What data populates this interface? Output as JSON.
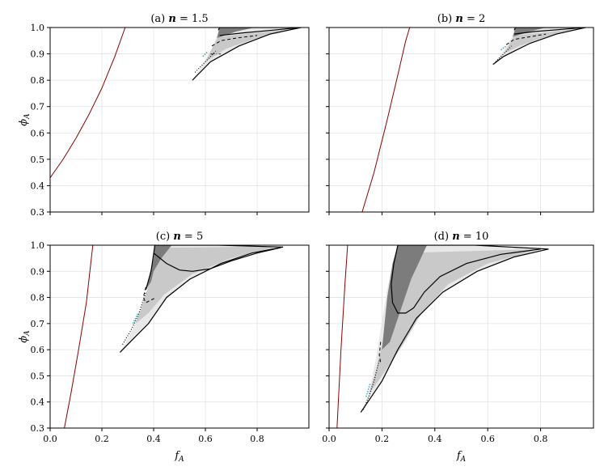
{
  "figure": {
    "shared_xlabel": "f",
    "shared_xlabel_sub": "A",
    "shared_ylabel": "ϕ",
    "shared_ylabel_sub": "A"
  },
  "chart_data": [
    {
      "type": "area",
      "title": "(a) n = 1.5",
      "title_prefix": "(a) ",
      "title_var": "n",
      "title_suffix": " = 1.5",
      "xlim": [
        0.0,
        1.0
      ],
      "ylim": [
        0.3,
        1.0
      ],
      "xticks": [
        0.0,
        0.2,
        0.4,
        0.6,
        0.8
      ],
      "yticks": [
        0.3,
        0.4,
        0.5,
        0.6,
        0.7,
        0.8,
        0.9,
        1.0
      ],
      "show_xticklabels": false,
      "show_yticklabels": true,
      "grid": true,
      "red_line": [
        [
          0.0,
          0.43
        ],
        [
          0.05,
          0.5
        ],
        [
          0.1,
          0.58
        ],
        [
          0.15,
          0.67
        ],
        [
          0.2,
          0.77
        ],
        [
          0.25,
          0.89
        ],
        [
          0.29,
          1.0
        ]
      ],
      "outer_region": [
        [
          0.55,
          0.8
        ],
        [
          0.59,
          0.86
        ],
        [
          0.62,
          0.91
        ],
        [
          0.64,
          0.955
        ],
        [
          0.65,
          0.99
        ],
        [
          0.655,
          1.0
        ],
        [
          0.97,
          1.0
        ],
        [
          0.85,
          0.975
        ],
        [
          0.73,
          0.93
        ],
        [
          0.62,
          0.87
        ],
        [
          0.55,
          0.8
        ]
      ],
      "light_region": [
        [
          0.6,
          0.87
        ],
        [
          0.63,
          0.93
        ],
        [
          0.65,
          0.965
        ],
        [
          0.95,
          0.995
        ],
        [
          0.8,
          0.96
        ],
        [
          0.68,
          0.92
        ],
        [
          0.6,
          0.87
        ]
      ],
      "dark_region": [
        [
          0.645,
          0.96
        ],
        [
          0.655,
          1.0
        ],
        [
          0.79,
          1.0
        ],
        [
          0.72,
          0.985
        ],
        [
          0.645,
          0.96
        ]
      ],
      "solid_curves": [
        [
          [
            0.55,
            0.8
          ],
          [
            0.62,
            0.87
          ],
          [
            0.73,
            0.93
          ],
          [
            0.85,
            0.975
          ],
          [
            0.97,
            1.0
          ]
        ],
        [
          [
            0.655,
            0.97
          ],
          [
            0.75,
            0.98
          ],
          [
            0.86,
            0.99
          ],
          [
            0.965,
            1.0
          ]
        ],
        [
          [
            0.65,
            0.99
          ],
          [
            0.655,
            1.0
          ],
          [
            0.97,
            1.0
          ]
        ]
      ],
      "dashed_curves": [
        [
          [
            0.625,
            0.93
          ],
          [
            0.66,
            0.95
          ],
          [
            0.72,
            0.96
          ],
          [
            0.8,
            0.97
          ]
        ]
      ],
      "dotted_curves": [
        [
          [
            0.56,
            0.83
          ],
          [
            0.6,
            0.87
          ],
          [
            0.64,
            0.91
          ]
        ]
      ],
      "cyan_curves": [
        [
          [
            0.59,
            0.89
          ],
          [
            0.61,
            0.91
          ]
        ]
      ],
      "dashdot_curves": [
        [
          [
            0.62,
            0.9
          ],
          [
            0.66,
            0.9
          ]
        ]
      ]
    },
    {
      "type": "area",
      "title": "(b) n = 2",
      "title_prefix": "(b) ",
      "title_var": "n",
      "title_suffix": " = 2",
      "xlim": [
        0.0,
        1.0
      ],
      "ylim": [
        0.3,
        1.0
      ],
      "xticks": [
        0.0,
        0.2,
        0.4,
        0.6,
        0.8
      ],
      "yticks": [
        0.3,
        0.4,
        0.5,
        0.6,
        0.7,
        0.8,
        0.9,
        1.0
      ],
      "show_xticklabels": false,
      "show_yticklabels": false,
      "grid": true,
      "red_line": [
        [
          0.125,
          0.3
        ],
        [
          0.17,
          0.45
        ],
        [
          0.22,
          0.65
        ],
        [
          0.26,
          0.82
        ],
        [
          0.29,
          0.95
        ],
        [
          0.305,
          1.0
        ]
      ],
      "outer_region": [
        [
          0.62,
          0.86
        ],
        [
          0.66,
          0.91
        ],
        [
          0.69,
          0.96
        ],
        [
          0.7,
          0.99
        ],
        [
          0.705,
          1.0
        ],
        [
          0.97,
          1.0
        ],
        [
          0.86,
          0.975
        ],
        [
          0.76,
          0.94
        ],
        [
          0.66,
          0.89
        ],
        [
          0.62,
          0.86
        ]
      ],
      "light_region": [
        [
          0.66,
          0.9
        ],
        [
          0.69,
          0.95
        ],
        [
          0.7,
          0.97
        ],
        [
          0.95,
          0.995
        ],
        [
          0.82,
          0.965
        ],
        [
          0.72,
          0.93
        ],
        [
          0.66,
          0.9
        ]
      ],
      "dark_region": [
        [
          0.695,
          0.965
        ],
        [
          0.705,
          1.0
        ],
        [
          0.82,
          1.0
        ],
        [
          0.76,
          0.985
        ],
        [
          0.695,
          0.965
        ]
      ],
      "solid_curves": [
        [
          [
            0.62,
            0.86
          ],
          [
            0.66,
            0.89
          ],
          [
            0.76,
            0.94
          ],
          [
            0.86,
            0.975
          ],
          [
            0.97,
            1.0
          ]
        ],
        [
          [
            0.7,
            0.975
          ],
          [
            0.78,
            0.985
          ],
          [
            0.88,
            0.993
          ],
          [
            0.965,
            1.0
          ]
        ],
        [
          [
            0.7,
            0.99
          ],
          [
            0.705,
            1.0
          ],
          [
            0.97,
            1.0
          ]
        ]
      ],
      "dashed_curves": [
        [
          [
            0.67,
            0.935
          ],
          [
            0.7,
            0.955
          ],
          [
            0.76,
            0.965
          ],
          [
            0.82,
            0.975
          ]
        ]
      ],
      "dotted_curves": [
        [
          [
            0.63,
            0.87
          ],
          [
            0.66,
            0.9
          ],
          [
            0.69,
            0.93
          ]
        ]
      ],
      "cyan_curves": [
        [
          [
            0.65,
            0.915
          ],
          [
            0.67,
            0.93
          ]
        ]
      ],
      "dashdot_curves": []
    },
    {
      "type": "area",
      "title": "(c) n = 5",
      "title_prefix": "(c) ",
      "title_var": "n",
      "title_suffix": " = 5",
      "xlim": [
        0.0,
        1.0
      ],
      "ylim": [
        0.3,
        1.0
      ],
      "xticks": [
        0.0,
        0.2,
        0.4,
        0.6,
        0.8
      ],
      "yticks": [
        0.3,
        0.4,
        0.5,
        0.6,
        0.7,
        0.8,
        0.9,
        1.0
      ],
      "show_xticklabels": true,
      "show_yticklabels": true,
      "grid": true,
      "red_line": [
        [
          0.055,
          0.3
        ],
        [
          0.08,
          0.43
        ],
        [
          0.11,
          0.6
        ],
        [
          0.14,
          0.78
        ],
        [
          0.165,
          1.0
        ]
      ],
      "outer_region": [
        [
          0.27,
          0.59
        ],
        [
          0.31,
          0.66
        ],
        [
          0.35,
          0.75
        ],
        [
          0.38,
          0.85
        ],
        [
          0.4,
          0.95
        ],
        [
          0.405,
          1.0
        ],
        [
          0.65,
          1.0
        ],
        [
          0.9,
          0.993
        ],
        [
          0.78,
          0.97
        ],
        [
          0.66,
          0.93
        ],
        [
          0.54,
          0.87
        ],
        [
          0.45,
          0.8
        ],
        [
          0.38,
          0.7
        ],
        [
          0.32,
          0.64
        ],
        [
          0.27,
          0.59
        ]
      ],
      "light_region": [
        [
          0.33,
          0.7
        ],
        [
          0.36,
          0.78
        ],
        [
          0.39,
          0.88
        ],
        [
          0.4,
          0.95
        ],
        [
          0.42,
          0.99
        ],
        [
          0.88,
          0.995
        ],
        [
          0.7,
          0.95
        ],
        [
          0.55,
          0.89
        ],
        [
          0.44,
          0.81
        ],
        [
          0.38,
          0.74
        ],
        [
          0.33,
          0.7
        ]
      ],
      "dark_region": [
        [
          0.405,
          1.0
        ],
        [
          0.47,
          1.0
        ],
        [
          0.43,
          0.95
        ],
        [
          0.4,
          0.9
        ],
        [
          0.39,
          0.86
        ],
        [
          0.37,
          0.83
        ],
        [
          0.4,
          0.95
        ]
      ],
      "solid_curves": [
        [
          [
            0.27,
            0.59
          ],
          [
            0.32,
            0.64
          ],
          [
            0.38,
            0.7
          ],
          [
            0.45,
            0.8
          ],
          [
            0.54,
            0.87
          ],
          [
            0.66,
            0.93
          ],
          [
            0.78,
            0.97
          ],
          [
            0.9,
            0.993
          ]
        ],
        [
          [
            0.4,
            0.97
          ],
          [
            0.45,
            0.93
          ],
          [
            0.5,
            0.905
          ],
          [
            0.55,
            0.9
          ],
          [
            0.62,
            0.91
          ],
          [
            0.7,
            0.94
          ],
          [
            0.8,
            0.97
          ],
          [
            0.89,
            0.99
          ]
        ],
        [
          [
            0.37,
            0.83
          ],
          [
            0.39,
            0.9
          ],
          [
            0.405,
            1.0
          ],
          [
            0.65,
            1.0
          ],
          [
            0.9,
            0.993
          ]
        ]
      ],
      "dashed_curves": [
        [
          [
            0.37,
            0.84
          ],
          [
            0.36,
            0.8
          ],
          [
            0.37,
            0.78
          ],
          [
            0.39,
            0.79
          ],
          [
            0.41,
            0.8
          ]
        ]
      ],
      "dotted_curves": [
        [
          [
            0.28,
            0.62
          ],
          [
            0.31,
            0.67
          ],
          [
            0.34,
            0.73
          ],
          [
            0.37,
            0.82
          ]
        ]
      ],
      "cyan_curves": [
        [
          [
            0.32,
            0.7
          ],
          [
            0.34,
            0.74
          ]
        ]
      ],
      "dashdot_curves": []
    },
    {
      "type": "area",
      "title": "(d) n = 10",
      "title_prefix": "(d) ",
      "title_var": "n",
      "title_suffix": " = 10",
      "xlim": [
        0.0,
        1.0
      ],
      "ylim": [
        0.3,
        1.0
      ],
      "xticks": [
        0.0,
        0.2,
        0.4,
        0.6,
        0.8
      ],
      "yticks": [
        0.3,
        0.4,
        0.5,
        0.6,
        0.7,
        0.8,
        0.9,
        1.0
      ],
      "show_xticklabels": true,
      "show_yticklabels": false,
      "grid": true,
      "red_line": [
        [
          0.03,
          0.3
        ],
        [
          0.045,
          0.6
        ],
        [
          0.06,
          0.85
        ],
        [
          0.07,
          1.0
        ]
      ],
      "outer_region": [
        [
          0.12,
          0.36
        ],
        [
          0.15,
          0.43
        ],
        [
          0.18,
          0.58
        ],
        [
          0.2,
          0.71
        ],
        [
          0.22,
          0.83
        ],
        [
          0.24,
          0.93
        ],
        [
          0.26,
          1.0
        ],
        [
          0.55,
          1.0
        ],
        [
          0.83,
          0.985
        ],
        [
          0.7,
          0.955
        ],
        [
          0.56,
          0.9
        ],
        [
          0.43,
          0.82
        ],
        [
          0.33,
          0.72
        ],
        [
          0.26,
          0.6
        ],
        [
          0.2,
          0.48
        ],
        [
          0.16,
          0.42
        ],
        [
          0.12,
          0.36
        ]
      ],
      "light_region": [
        [
          0.15,
          0.43
        ],
        [
          0.18,
          0.53
        ],
        [
          0.21,
          0.66
        ],
        [
          0.24,
          0.8
        ],
        [
          0.26,
          0.92
        ],
        [
          0.28,
          0.97
        ],
        [
          0.8,
          0.985
        ],
        [
          0.6,
          0.93
        ],
        [
          0.45,
          0.85
        ],
        [
          0.35,
          0.74
        ],
        [
          0.28,
          0.62
        ],
        [
          0.2,
          0.5
        ],
        [
          0.15,
          0.43
        ]
      ],
      "dark_region": [
        [
          0.26,
          1.0
        ],
        [
          0.37,
          1.0
        ],
        [
          0.31,
          0.87
        ],
        [
          0.27,
          0.75
        ],
        [
          0.23,
          0.63
        ],
        [
          0.2,
          0.6
        ],
        [
          0.22,
          0.8
        ],
        [
          0.24,
          0.93
        ],
        [
          0.26,
          1.0
        ]
      ],
      "solid_curves": [
        [
          [
            0.12,
            0.36
          ],
          [
            0.16,
            0.42
          ],
          [
            0.2,
            0.48
          ],
          [
            0.26,
            0.6
          ],
          [
            0.33,
            0.72
          ],
          [
            0.43,
            0.82
          ],
          [
            0.56,
            0.9
          ],
          [
            0.7,
            0.955
          ],
          [
            0.83,
            0.985
          ]
        ],
        [
          [
            0.26,
            1.0
          ],
          [
            0.55,
            1.0
          ],
          [
            0.83,
            0.985
          ]
        ],
        [
          [
            0.26,
            1.0
          ],
          [
            0.245,
            0.93
          ],
          [
            0.235,
            0.85
          ],
          [
            0.24,
            0.78
          ],
          [
            0.26,
            0.74
          ],
          [
            0.29,
            0.74
          ],
          [
            0.32,
            0.76
          ],
          [
            0.36,
            0.82
          ],
          [
            0.42,
            0.88
          ],
          [
            0.52,
            0.93
          ],
          [
            0.65,
            0.965
          ],
          [
            0.8,
            0.985
          ]
        ]
      ],
      "dashed_curves": [
        [
          [
            0.195,
            0.63
          ],
          [
            0.19,
            0.58
          ],
          [
            0.195,
            0.55
          ]
        ]
      ],
      "dotted_curves": [
        [
          [
            0.13,
            0.37
          ],
          [
            0.15,
            0.42
          ],
          [
            0.17,
            0.48
          ],
          [
            0.19,
            0.56
          ]
        ]
      ],
      "cyan_curves": [
        [
          [
            0.14,
            0.42
          ],
          [
            0.155,
            0.47
          ]
        ]
      ],
      "dashdot_curves": []
    }
  ]
}
